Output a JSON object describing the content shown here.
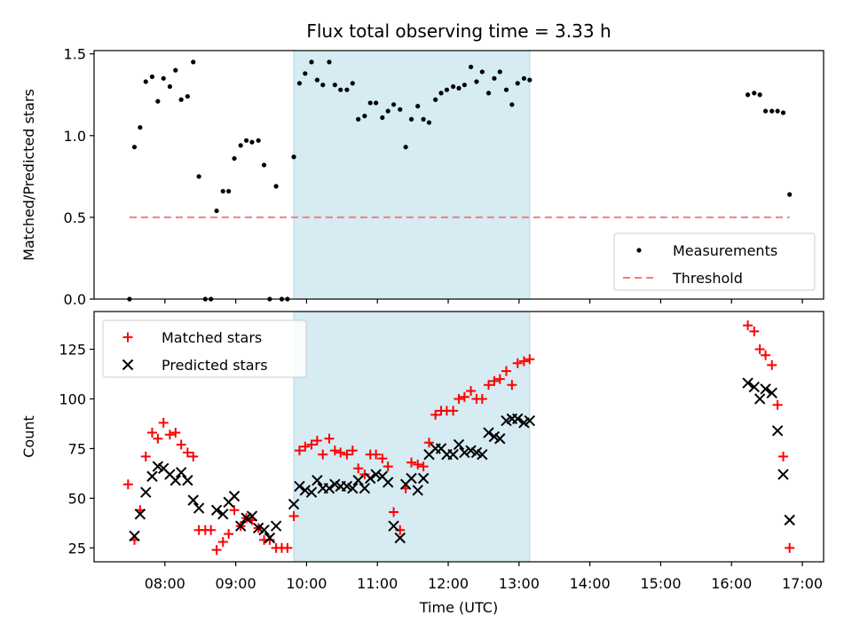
{
  "chart_data": {
    "title": "Flux total observing time = 3.33 h",
    "xlabel": "Time (UTC)",
    "xlim": [
      7.0,
      17.3
    ],
    "x_ticks": [
      {
        "value": 8,
        "label": "08:00"
      },
      {
        "value": 9,
        "label": "09:00"
      },
      {
        "value": 10,
        "label": "10:00"
      },
      {
        "value": 11,
        "label": "11:00"
      },
      {
        "value": 12,
        "label": "12:00"
      },
      {
        "value": 13,
        "label": "13:00"
      },
      {
        "value": 14,
        "label": "14:00"
      },
      {
        "value": 15,
        "label": "15:00"
      },
      {
        "value": 16,
        "label": "16:00"
      },
      {
        "value": 17,
        "label": "17:00"
      }
    ],
    "highlight_span": {
      "x_start": 9.82,
      "x_end": 13.15,
      "color": "#add8e6"
    },
    "panels": [
      {
        "id": "ratio",
        "type": "scatter",
        "ylabel": "Matched/Predicted stars",
        "ylim": [
          0,
          1.52
        ],
        "y_ticks": [
          {
            "value": 0,
            "label": "0.0"
          },
          {
            "value": 0.5,
            "label": "0.5"
          },
          {
            "value": 1.0,
            "label": "1.0"
          },
          {
            "value": 1.5,
            "label": "1.5"
          }
        ],
        "legend_position": "lower-right",
        "series": [
          {
            "name": "Measurements",
            "marker": "dot",
            "color": "#000000",
            "points": [
              [
                7.5,
                0
              ],
              [
                7.57,
                0.93
              ],
              [
                7.65,
                1.05
              ],
              [
                7.73,
                1.33
              ],
              [
                7.82,
                1.36
              ],
              [
                7.9,
                1.21
              ],
              [
                7.98,
                1.35
              ],
              [
                8.07,
                1.3
              ],
              [
                8.15,
                1.4
              ],
              [
                8.23,
                1.22
              ],
              [
                8.32,
                1.24
              ],
              [
                8.4,
                1.45
              ],
              [
                8.48,
                0.75
              ],
              [
                8.57,
                0
              ],
              [
                8.65,
                0
              ],
              [
                8.73,
                0.54
              ],
              [
                8.82,
                0.66
              ],
              [
                8.9,
                0.66
              ],
              [
                8.98,
                0.86
              ],
              [
                9.07,
                0.94
              ],
              [
                9.15,
                0.97
              ],
              [
                9.23,
                0.96
              ],
              [
                9.32,
                0.97
              ],
              [
                9.4,
                0.82
              ],
              [
                9.48,
                0
              ],
              [
                9.57,
                0.69
              ],
              [
                9.65,
                0
              ],
              [
                9.73,
                0
              ],
              [
                9.82,
                0.87
              ],
              [
                9.9,
                1.32
              ],
              [
                9.98,
                1.38
              ],
              [
                10.07,
                1.45
              ],
              [
                10.15,
                1.34
              ],
              [
                10.23,
                1.31
              ],
              [
                10.32,
                1.45
              ],
              [
                10.4,
                1.31
              ],
              [
                10.48,
                1.28
              ],
              [
                10.57,
                1.28
              ],
              [
                10.65,
                1.32
              ],
              [
                10.73,
                1.1
              ],
              [
                10.82,
                1.12
              ],
              [
                10.9,
                1.2
              ],
              [
                10.98,
                1.2
              ],
              [
                11.07,
                1.11
              ],
              [
                11.15,
                1.15
              ],
              [
                11.23,
                1.19
              ],
              [
                11.32,
                1.16
              ],
              [
                11.4,
                0.93
              ],
              [
                11.48,
                1.1
              ],
              [
                11.57,
                1.18
              ],
              [
                11.65,
                1.1
              ],
              [
                11.73,
                1.08
              ],
              [
                11.82,
                1.22
              ],
              [
                11.9,
                1.26
              ],
              [
                11.98,
                1.28
              ],
              [
                12.07,
                1.3
              ],
              [
                12.15,
                1.29
              ],
              [
                12.23,
                1.31
              ],
              [
                12.32,
                1.42
              ],
              [
                12.4,
                1.33
              ],
              [
                12.48,
                1.39
              ],
              [
                12.57,
                1.26
              ],
              [
                12.65,
                1.35
              ],
              [
                12.73,
                1.39
              ],
              [
                12.82,
                1.28
              ],
              [
                12.9,
                1.19
              ],
              [
                12.98,
                1.32
              ],
              [
                13.07,
                1.35
              ],
              [
                13.15,
                1.34
              ],
              [
                16.23,
                1.25
              ],
              [
                16.32,
                1.26
              ],
              [
                16.4,
                1.25
              ],
              [
                16.48,
                1.15
              ],
              [
                16.57,
                1.15
              ],
              [
                16.65,
                1.15
              ],
              [
                16.73,
                1.14
              ],
              [
                16.82,
                0.64
              ]
            ]
          },
          {
            "name": "Threshold",
            "marker": "dashed-line",
            "color": "#f08080",
            "points": [
              [
                7.5,
                0.5
              ],
              [
                16.82,
                0.5
              ]
            ]
          }
        ]
      },
      {
        "id": "count",
        "type": "scatter",
        "ylabel": "Count",
        "ylim": [
          18,
          144
        ],
        "y_ticks": [
          {
            "value": 25,
            "label": "25"
          },
          {
            "value": 50,
            "label": "50"
          },
          {
            "value": 75,
            "label": "75"
          },
          {
            "value": 100,
            "label": "100"
          },
          {
            "value": 125,
            "label": "125"
          }
        ],
        "legend_position": "upper-left",
        "series": [
          {
            "name": "Matched stars",
            "marker": "plus",
            "color": "#ff0000",
            "points": [
              [
                7.48,
                57
              ],
              [
                7.57,
                29
              ],
              [
                7.65,
                44
              ],
              [
                7.73,
                71
              ],
              [
                7.82,
                83
              ],
              [
                7.9,
                80
              ],
              [
                7.98,
                88
              ],
              [
                8.07,
                82
              ],
              [
                8.15,
                83
              ],
              [
                8.23,
                77
              ],
              [
                8.32,
                73
              ],
              [
                8.4,
                71
              ],
              [
                8.48,
                34
              ],
              [
                8.57,
                34
              ],
              [
                8.65,
                34
              ],
              [
                8.73,
                24
              ],
              [
                8.82,
                28
              ],
              [
                8.9,
                32
              ],
              [
                8.98,
                44
              ],
              [
                9.07,
                36
              ],
              [
                9.15,
                40
              ],
              [
                9.23,
                39
              ],
              [
                9.32,
                35
              ],
              [
                9.4,
                29
              ],
              [
                9.48,
                29
              ],
              [
                9.57,
                25
              ],
              [
                9.65,
                25
              ],
              [
                9.73,
                25
              ],
              [
                9.82,
                41
              ],
              [
                9.9,
                74
              ],
              [
                9.98,
                76
              ],
              [
                10.07,
                77
              ],
              [
                10.15,
                79
              ],
              [
                10.23,
                72
              ],
              [
                10.32,
                80
              ],
              [
                10.4,
                74
              ],
              [
                10.48,
                73
              ],
              [
                10.57,
                72
              ],
              [
                10.65,
                74
              ],
              [
                10.73,
                65
              ],
              [
                10.82,
                62
              ],
              [
                10.9,
                72
              ],
              [
                10.98,
                72
              ],
              [
                11.07,
                70
              ],
              [
                11.15,
                66
              ],
              [
                11.23,
                43
              ],
              [
                11.32,
                34
              ],
              [
                11.4,
                55
              ],
              [
                11.48,
                68
              ],
              [
                11.57,
                67
              ],
              [
                11.65,
                66
              ],
              [
                11.73,
                78
              ],
              [
                11.82,
                92
              ],
              [
                11.9,
                94
              ],
              [
                11.98,
                94
              ],
              [
                12.07,
                94
              ],
              [
                12.15,
                100
              ],
              [
                12.23,
                101
              ],
              [
                12.32,
                104
              ],
              [
                12.4,
                100
              ],
              [
                12.48,
                100
              ],
              [
                12.57,
                107
              ],
              [
                12.65,
                109
              ],
              [
                12.73,
                110
              ],
              [
                12.82,
                114
              ],
              [
                12.9,
                107
              ],
              [
                12.98,
                118
              ],
              [
                13.07,
                119
              ],
              [
                13.15,
                120
              ],
              [
                16.23,
                137
              ],
              [
                16.32,
                134
              ],
              [
                16.4,
                125
              ],
              [
                16.48,
                122
              ],
              [
                16.57,
                117
              ],
              [
                16.65,
                97
              ],
              [
                16.73,
                71
              ],
              [
                16.82,
                25
              ]
            ]
          },
          {
            "name": "Predicted stars",
            "marker": "x",
            "color": "#000000",
            "points": [
              [
                7.57,
                31
              ],
              [
                7.65,
                42
              ],
              [
                7.73,
                53
              ],
              [
                7.82,
                61
              ],
              [
                7.9,
                66
              ],
              [
                7.98,
                65
              ],
              [
                8.07,
                62
              ],
              [
                8.15,
                59
              ],
              [
                8.23,
                63
              ],
              [
                8.32,
                59
              ],
              [
                8.4,
                49
              ],
              [
                8.48,
                45
              ],
              [
                8.73,
                44
              ],
              [
                8.82,
                42
              ],
              [
                8.9,
                48
              ],
              [
                8.98,
                51
              ],
              [
                9.07,
                36
              ],
              [
                9.15,
                40
              ],
              [
                9.23,
                41
              ],
              [
                9.32,
                35
              ],
              [
                9.4,
                34
              ],
              [
                9.48,
                30
              ],
              [
                9.57,
                36
              ],
              [
                9.82,
                47
              ],
              [
                9.9,
                56
              ],
              [
                9.98,
                54
              ],
              [
                10.07,
                53
              ],
              [
                10.15,
                59
              ],
              [
                10.23,
                55
              ],
              [
                10.32,
                55
              ],
              [
                10.4,
                57
              ],
              [
                10.48,
                56
              ],
              [
                10.57,
                56
              ],
              [
                10.65,
                55
              ],
              [
                10.73,
                59
              ],
              [
                10.82,
                55
              ],
              [
                10.9,
                60
              ],
              [
                10.98,
                62
              ],
              [
                11.07,
                61
              ],
              [
                11.15,
                58
              ],
              [
                11.23,
                36
              ],
              [
                11.32,
                30
              ],
              [
                11.4,
                57
              ],
              [
                11.48,
                60
              ],
              [
                11.57,
                54
              ],
              [
                11.65,
                60
              ],
              [
                11.73,
                72
              ],
              [
                11.82,
                75
              ],
              [
                11.9,
                75
              ],
              [
                11.98,
                72
              ],
              [
                12.07,
                72
              ],
              [
                12.15,
                77
              ],
              [
                12.23,
                73
              ],
              [
                12.32,
                74
              ],
              [
                12.4,
                73
              ],
              [
                12.48,
                72
              ],
              [
                12.57,
                83
              ],
              [
                12.65,
                81
              ],
              [
                12.73,
                80
              ],
              [
                12.82,
                89
              ],
              [
                12.9,
                90
              ],
              [
                12.98,
                90
              ],
              [
                13.07,
                88
              ],
              [
                13.15,
                89
              ],
              [
                16.23,
                108
              ],
              [
                16.32,
                106
              ],
              [
                16.4,
                100
              ],
              [
                16.48,
                105
              ],
              [
                16.57,
                103
              ],
              [
                16.65,
                84
              ],
              [
                16.73,
                62
              ],
              [
                16.82,
                39
              ]
            ]
          }
        ]
      }
    ]
  }
}
